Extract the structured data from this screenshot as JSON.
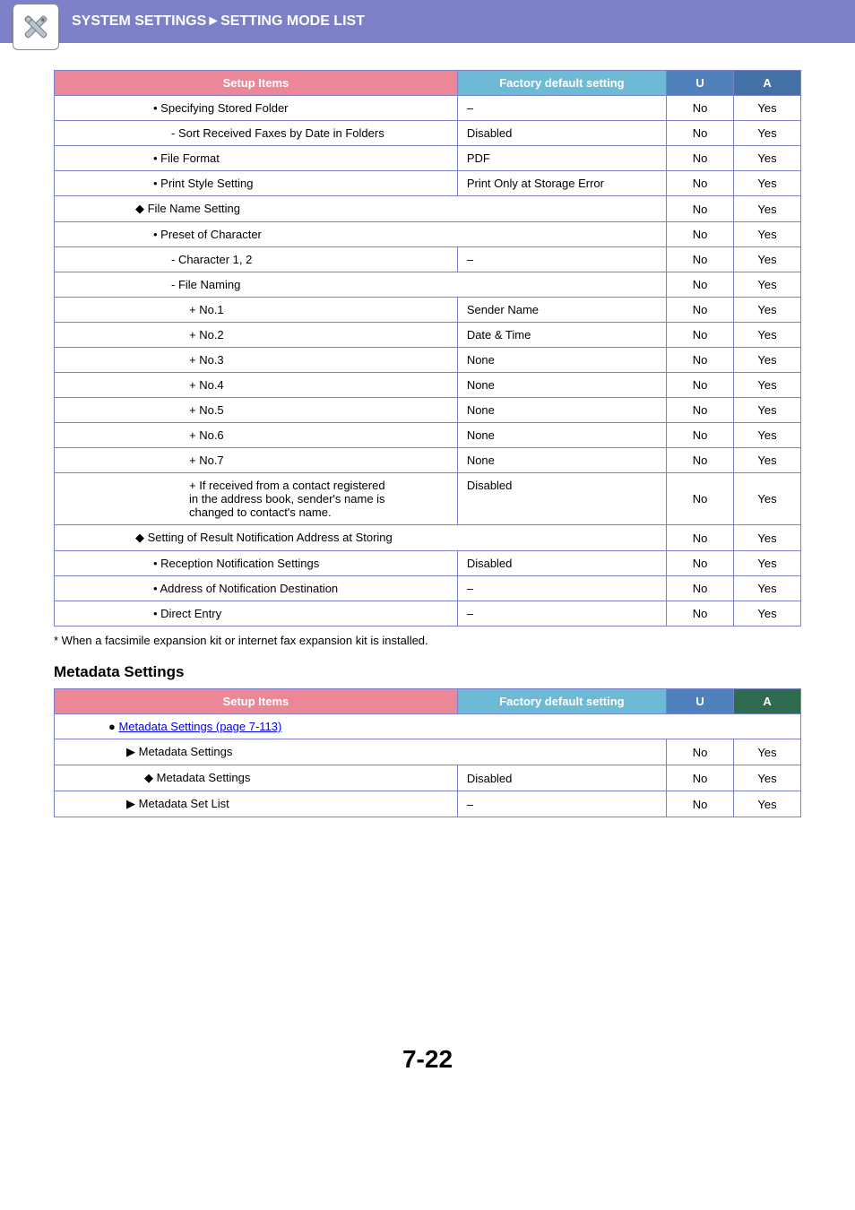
{
  "header": {
    "breadcrumb": "SYSTEM SETTINGS►SETTING MODE LIST"
  },
  "table1": {
    "headers": {
      "setup": "Setup Items",
      "factory": "Factory default setting",
      "u": "U",
      "a": "A"
    },
    "rows": [
      {
        "label": "• Specifying Stored Folder",
        "factory": "–",
        "u": "No",
        "a": "Yes",
        "indent": 1
      },
      {
        "label": "-  Sort Received Faxes by Date in Folders",
        "factory": "Disabled",
        "u": "No",
        "a": "Yes",
        "indent": 2
      },
      {
        "label": "• File Format",
        "factory": "PDF",
        "u": "No",
        "a": "Yes",
        "indent": 1
      },
      {
        "label": "• Print Style Setting",
        "factory": "Print Only at Storage Error",
        "u": "No",
        "a": "Yes",
        "indent": 1
      },
      {
        "label": "◆ File Name Setting",
        "span": true,
        "u": "No",
        "a": "Yes",
        "indent": 0
      },
      {
        "label": "• Preset of Character",
        "span": true,
        "u": "No",
        "a": "Yes",
        "indent": 1
      },
      {
        "label": "-  Character 1, 2",
        "factory": "–",
        "u": "No",
        "a": "Yes",
        "indent": 2
      },
      {
        "label": "-  File Naming",
        "span": true,
        "u": "No",
        "a": "Yes",
        "indent": 2
      },
      {
        "label": "+  No.1",
        "factory": "Sender Name",
        "u": "No",
        "a": "Yes",
        "indent": 3
      },
      {
        "label": "+  No.2",
        "factory": "Date & Time",
        "u": "No",
        "a": "Yes",
        "indent": 3
      },
      {
        "label": "+  No.3",
        "factory": "None",
        "u": "No",
        "a": "Yes",
        "indent": 3
      },
      {
        "label": "+  No.4",
        "factory": "None",
        "u": "No",
        "a": "Yes",
        "indent": 3
      },
      {
        "label": "+  No.5",
        "factory": "None",
        "u": "No",
        "a": "Yes",
        "indent": 3
      },
      {
        "label": "+  No.6",
        "factory": "None",
        "u": "No",
        "a": "Yes",
        "indent": 3
      },
      {
        "label": "+  No.7",
        "factory": "None",
        "u": "No",
        "a": "Yes",
        "indent": 3
      },
      {
        "label": "+  If received from a contact registered in the address book, sender's name is changed to contact's name.",
        "factory": "Disabled",
        "u": "No",
        "a": "Yes",
        "indent": 3,
        "tall": true
      },
      {
        "label": "◆ Setting of Result Notification Address at Storing",
        "span": true,
        "u": "No",
        "a": "Yes",
        "indent": 0
      },
      {
        "label": "• Reception Notification Settings",
        "factory": "Disabled",
        "u": "No",
        "a": "Yes",
        "indent": 1
      },
      {
        "label": "• Address of Notification Destination",
        "factory": "–",
        "u": "No",
        "a": "Yes",
        "indent": 1
      },
      {
        "label": "• Direct Entry",
        "factory": "–",
        "u": "No",
        "a": "Yes",
        "indent": 1
      }
    ]
  },
  "footnote": "*    When a facsimile expansion kit or internet fax expansion kit is installed.",
  "section2": {
    "title": "Metadata Settings",
    "headers": {
      "setup": "Setup Items",
      "factory": "Factory default setting",
      "u": "U",
      "a": "A"
    },
    "rows": [
      {
        "label": "Metadata Settings (page 7-113)",
        "link": true,
        "span": true,
        "indent": 1,
        "bullet": "●"
      },
      {
        "label": "Metadata Settings",
        "span": true,
        "u": "No",
        "a": "Yes",
        "indent": 2,
        "bullet": "▶"
      },
      {
        "label": "Metadata Settings",
        "factory": "Disabled",
        "u": "No",
        "a": "Yes",
        "indent": 3,
        "bullet": "◆"
      },
      {
        "label": "Metadata Set List",
        "factory": "–",
        "u": "No",
        "a": "Yes",
        "indent": 2,
        "bullet": "▶"
      }
    ]
  },
  "pageNumber": "7-22"
}
